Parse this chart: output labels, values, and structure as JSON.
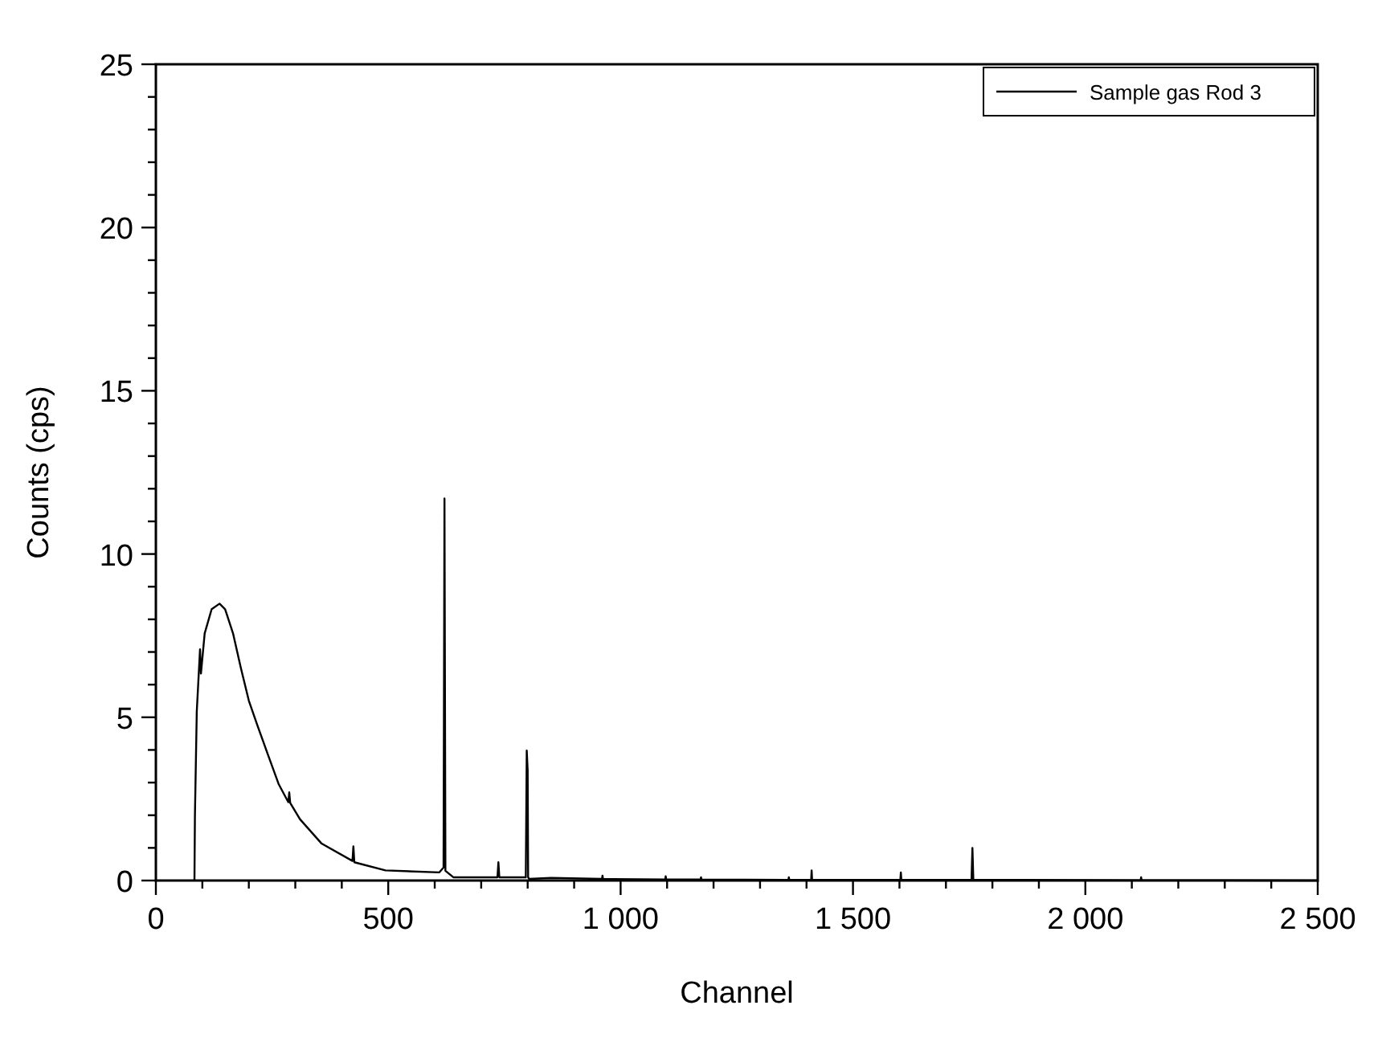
{
  "chart_data": {
    "type": "line",
    "xlabel": "Channel",
    "ylabel": "Counts (cps)",
    "xlim": [
      0,
      2500
    ],
    "ylim": [
      0,
      25
    ],
    "xticks": [
      0,
      {
        "value": 100,
        "label": null
      },
      {
        "value": 200,
        "label": null
      },
      {
        "value": 300,
        "label": null
      },
      {
        "value": 400,
        "label": null
      },
      500,
      {
        "value": 600,
        "label": null
      },
      {
        "value": 700,
        "label": null
      },
      {
        "value": 800,
        "label": null
      },
      {
        "value": 900,
        "label": null
      },
      {
        "value": 1000,
        "label": "1 000"
      },
      {
        "value": 1100,
        "label": null
      },
      {
        "value": 1200,
        "label": null
      },
      {
        "value": 1300,
        "label": null
      },
      {
        "value": 1400,
        "label": null
      },
      {
        "value": 1500,
        "label": "1 500"
      },
      {
        "value": 1600,
        "label": null
      },
      {
        "value": 1700,
        "label": null
      },
      {
        "value": 1800,
        "label": null
      },
      {
        "value": 1900,
        "label": null
      },
      {
        "value": 2000,
        "label": "2 000"
      },
      {
        "value": 2100,
        "label": null
      },
      {
        "value": 2200,
        "label": null
      },
      {
        "value": 2300,
        "label": null
      },
      {
        "value": 2400,
        "label": null
      },
      {
        "value": 2500,
        "label": "2 500"
      }
    ],
    "yticks": [
      0,
      {
        "value": 1,
        "label": null
      },
      {
        "value": 2,
        "label": null
      },
      {
        "value": 3,
        "label": null
      },
      {
        "value": 4,
        "label": null
      },
      5,
      {
        "value": 6,
        "label": null
      },
      {
        "value": 7,
        "label": null
      },
      {
        "value": 8,
        "label": null
      },
      {
        "value": 9,
        "label": null
      },
      10,
      {
        "value": 11,
        "label": null
      },
      {
        "value": 12,
        "label": null
      },
      {
        "value": 13,
        "label": null
      },
      {
        "value": 14,
        "label": null
      },
      15,
      {
        "value": 16,
        "label": null
      },
      {
        "value": 17,
        "label": null
      },
      {
        "value": 18,
        "label": null
      },
      {
        "value": 19,
        "label": null
      },
      20,
      {
        "value": 21,
        "label": null
      },
      {
        "value": 22,
        "label": null
      },
      {
        "value": 23,
        "label": null
      },
      {
        "value": 24,
        "label": null
      },
      25
    ],
    "legend": "top right",
    "line_style": "solid",
    "series": [
      {
        "name": "Sample gas Rod 3",
        "color": "#000000",
        "x": [
          83,
          84,
          88,
          95,
          97,
          105,
          120,
          137,
          149,
          166,
          183,
          200,
          218,
          241,
          264,
          285,
          287,
          289,
          310,
          356,
          423,
          425,
          427,
          494,
          610,
          619,
          621,
          623,
          640,
          700,
          735,
          737,
          739,
          796,
          798,
          800,
          801,
          803,
          850,
          960,
          961,
          962,
          1096,
          1097,
          1098,
          1172,
          1173,
          1174,
          1361,
          1362,
          1363,
          1410,
          1411,
          1412,
          1602,
          1603,
          1604,
          1755,
          1757,
          1759,
          2119,
          2120,
          2121,
          2500
        ],
        "values": [
          0,
          1.96,
          5.18,
          7.08,
          6.34,
          7.57,
          8.31,
          8.48,
          8.31,
          7.57,
          6.5,
          5.51,
          4.77,
          3.86,
          2.96,
          2.4,
          2.7,
          2.38,
          1.88,
          1.14,
          0.6,
          1.05,
          0.56,
          0.31,
          0.25,
          0.4,
          11.7,
          0.3,
          0.1,
          0.1,
          0.1,
          0.56,
          0.1,
          0.1,
          3.98,
          3.37,
          0.1,
          0.05,
          0.08,
          0.05,
          0.15,
          0.05,
          0.03,
          0.13,
          0.03,
          0.03,
          0.1,
          0.03,
          0.02,
          0.1,
          0.02,
          0.02,
          0.31,
          0.02,
          0.02,
          0.25,
          0.02,
          0.02,
          1.0,
          0.02,
          0.01,
          0.1,
          0.01,
          0
        ]
      }
    ]
  }
}
